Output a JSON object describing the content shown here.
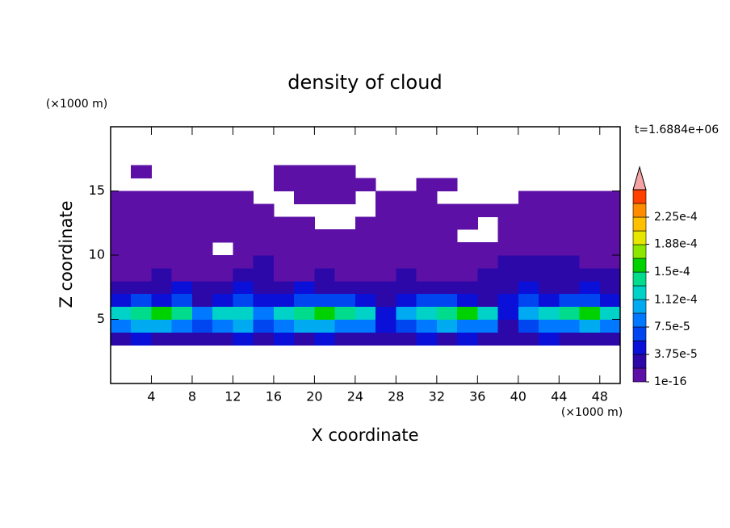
{
  "chart_data": {
    "type": "contour",
    "title": "density of cloud",
    "x_label": "X coordinate",
    "y_label": "Z coordinate",
    "x_unit": "(×1000 m)",
    "y_unit": "(×1000 m)",
    "annotation": "t=1.6884e+06",
    "xlim": [
      0,
      50
    ],
    "ylim": [
      0,
      20
    ],
    "xticks": [
      4,
      8,
      12,
      16,
      20,
      24,
      28,
      32,
      36,
      40,
      44,
      48
    ],
    "yticks": [
      5,
      10,
      15
    ],
    "x": [
      1,
      3,
      5,
      7,
      9,
      11,
      13,
      15,
      17,
      19,
      21,
      23,
      25,
      27,
      29,
      31,
      33,
      35,
      37,
      39,
      41,
      43,
      45,
      47,
      49
    ],
    "z": [
      3.5,
      4.5,
      5.5,
      6.5,
      7.5,
      8.5,
      9.5,
      10.5,
      11.5,
      12.5,
      13.5,
      14.5,
      15.5,
      16.5
    ],
    "values": [
      [
        2e-05,
        4e-05,
        2e-05,
        2e-05,
        2e-05,
        2e-05,
        4e-05,
        2e-05,
        4e-05,
        2e-05,
        4e-05,
        2e-05,
        2e-05,
        2e-05,
        2e-05,
        4e-05,
        2e-05,
        4e-05,
        2e-05,
        2e-05,
        2e-05,
        4e-05,
        2e-05,
        2e-05,
        2e-05
      ],
      [
        8e-05,
        0.0001,
        0.0001,
        8e-05,
        6e-05,
        8e-05,
        0.0001,
        6e-05,
        8e-05,
        0.0001,
        0.0001,
        8e-05,
        8e-05,
        4e-05,
        6e-05,
        8e-05,
        0.0001,
        8e-05,
        8e-05,
        2e-05,
        6e-05,
        8e-05,
        8e-05,
        0.0001,
        8e-05
      ],
      [
        0.00012,
        0.00014,
        0.00016,
        0.00014,
        8e-05,
        0.00012,
        0.00012,
        8e-05,
        0.00012,
        0.00014,
        0.00016,
        0.00014,
        0.00012,
        4e-05,
        0.0001,
        0.00012,
        0.00014,
        0.00016,
        0.00012,
        4e-05,
        0.0001,
        0.00012,
        0.00014,
        0.00016,
        0.00012
      ],
      [
        4e-05,
        6e-05,
        4e-05,
        6e-05,
        2e-05,
        4e-05,
        6e-05,
        4e-05,
        4e-05,
        6e-05,
        6e-05,
        6e-05,
        4e-05,
        2e-05,
        4e-05,
        6e-05,
        6e-05,
        4e-05,
        2e-05,
        4e-05,
        6e-05,
        4e-05,
        6e-05,
        6e-05,
        4e-05
      ],
      [
        2e-05,
        2e-05,
        2e-05,
        4e-05,
        2e-05,
        2e-05,
        4e-05,
        2e-05,
        2e-05,
        4e-05,
        2e-05,
        2e-05,
        2e-05,
        2e-05,
        2e-05,
        2e-05,
        2e-05,
        2e-05,
        2e-05,
        2e-05,
        4e-05,
        2e-05,
        2e-05,
        4e-05,
        2e-05
      ],
      [
        1e-16,
        1e-16,
        2e-05,
        1e-16,
        1e-16,
        1e-16,
        2e-05,
        2e-05,
        1e-16,
        1e-16,
        2e-05,
        1e-16,
        1e-16,
        1e-16,
        2e-05,
        1e-16,
        1e-16,
        1e-16,
        2e-05,
        2e-05,
        2e-05,
        2e-05,
        2e-05,
        2e-05,
        2e-05
      ],
      [
        1e-16,
        1e-16,
        1e-16,
        1e-16,
        1e-16,
        1e-16,
        1e-16,
        2e-05,
        1e-16,
        1e-16,
        1e-16,
        1e-16,
        1e-16,
        1e-16,
        1e-16,
        1e-16,
        1e-16,
        1e-16,
        1e-16,
        2e-05,
        2e-05,
        2e-05,
        2e-05,
        1e-16,
        1e-16
      ],
      [
        1e-16,
        1e-16,
        1e-16,
        1e-16,
        1e-16,
        null,
        1e-16,
        1e-16,
        1e-16,
        1e-16,
        1e-16,
        1e-16,
        1e-16,
        1e-16,
        1e-16,
        1e-16,
        1e-16,
        1e-16,
        1e-16,
        1e-16,
        1e-16,
        1e-16,
        1e-16,
        1e-16,
        1e-16
      ],
      [
        1e-16,
        1e-16,
        1e-16,
        1e-16,
        1e-16,
        1e-16,
        1e-16,
        1e-16,
        1e-16,
        1e-16,
        1e-16,
        1e-16,
        1e-16,
        1e-16,
        1e-16,
        1e-16,
        1e-16,
        null,
        null,
        1e-16,
        1e-16,
        1e-16,
        1e-16,
        1e-16,
        1e-16
      ],
      [
        1e-16,
        1e-16,
        1e-16,
        1e-16,
        1e-16,
        1e-16,
        1e-16,
        1e-16,
        1e-16,
        1e-16,
        null,
        null,
        1e-16,
        1e-16,
        1e-16,
        1e-16,
        1e-16,
        1e-16,
        null,
        1e-16,
        1e-16,
        1e-16,
        1e-16,
        1e-16,
        1e-16
      ],
      [
        1e-16,
        1e-16,
        1e-16,
        1e-16,
        1e-16,
        1e-16,
        1e-16,
        1e-16,
        null,
        null,
        null,
        null,
        null,
        1e-16,
        1e-16,
        1e-16,
        1e-16,
        1e-16,
        1e-16,
        1e-16,
        1e-16,
        1e-16,
        1e-16,
        1e-16,
        1e-16
      ],
      [
        1e-16,
        1e-16,
        1e-16,
        1e-16,
        1e-16,
        1e-16,
        1e-16,
        null,
        null,
        1e-16,
        1e-16,
        1e-16,
        null,
        1e-16,
        1e-16,
        1e-16,
        null,
        null,
        null,
        null,
        1e-16,
        1e-16,
        1e-16,
        1e-16,
        1e-16
      ],
      [
        null,
        null,
        null,
        null,
        null,
        null,
        null,
        null,
        1e-16,
        1e-16,
        1e-16,
        1e-16,
        1e-16,
        null,
        null,
        1e-16,
        1e-16,
        null,
        null,
        null,
        null,
        null,
        null,
        null,
        null
      ],
      [
        null,
        1e-16,
        null,
        null,
        null,
        null,
        null,
        null,
        1e-16,
        1e-16,
        1e-16,
        1e-16,
        null,
        null,
        null,
        null,
        null,
        null,
        null,
        null,
        null,
        null,
        null,
        null,
        null
      ]
    ],
    "levels": [
      1e-16,
      1.875e-05,
      3.75e-05,
      5.625e-05,
      7.5e-05,
      9.375e-05,
      0.0001125,
      0.00013125,
      0.00015,
      0.00016875,
      0.0001875,
      0.00020625,
      0.000225,
      0.00024375
    ],
    "colors": [
      "#5c10a6",
      "#2c08a8",
      "#0a10d8",
      "#0046f0",
      "#0078ff",
      "#00aaf0",
      "#00d2c8",
      "#00dc8c",
      "#00d200",
      "#8ce600",
      "#e6e600",
      "#ffc000",
      "#ff8c00",
      "#ff4000"
    ],
    "clim": [
      1e-16,
      0.0002625
    ],
    "over_color": "#f4a4a4",
    "cbar_ticks": [
      {
        "value": 1e-16,
        "label": "1e-16"
      },
      {
        "value": 3.75e-05,
        "label": "3.75e-5"
      },
      {
        "value": 7.5e-05,
        "label": "7.5e-5"
      },
      {
        "value": 0.000112,
        "label": "1.12e-4"
      },
      {
        "value": 0.00015,
        "label": "1.5e-4"
      },
      {
        "value": 0.000188,
        "label": "1.88e-4"
      },
      {
        "value": 0.000225,
        "label": "2.25e-4"
      }
    ]
  }
}
